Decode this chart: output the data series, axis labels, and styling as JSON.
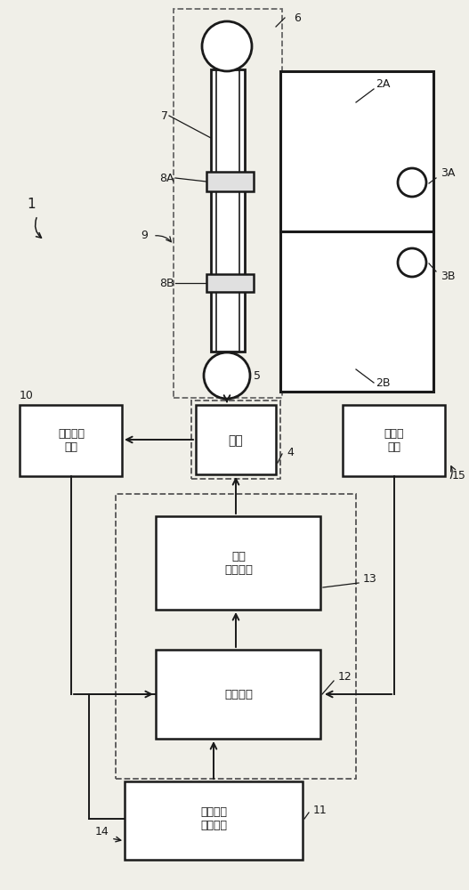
{
  "bg_color": "#f0efe8",
  "line_color": "#1a1a1a",
  "box_fill": "#ffffff",
  "figure_width": 5.27,
  "figure_height": 10.0,
  "box_texts": {
    "motor": "电机",
    "rotation_detect": "旋转检测\n单元",
    "person_detect": "人检测\n单元",
    "motor_drive": "电机\n驱动电路",
    "control": "控制单元",
    "door_pos": "门居位量\n检测单元"
  }
}
